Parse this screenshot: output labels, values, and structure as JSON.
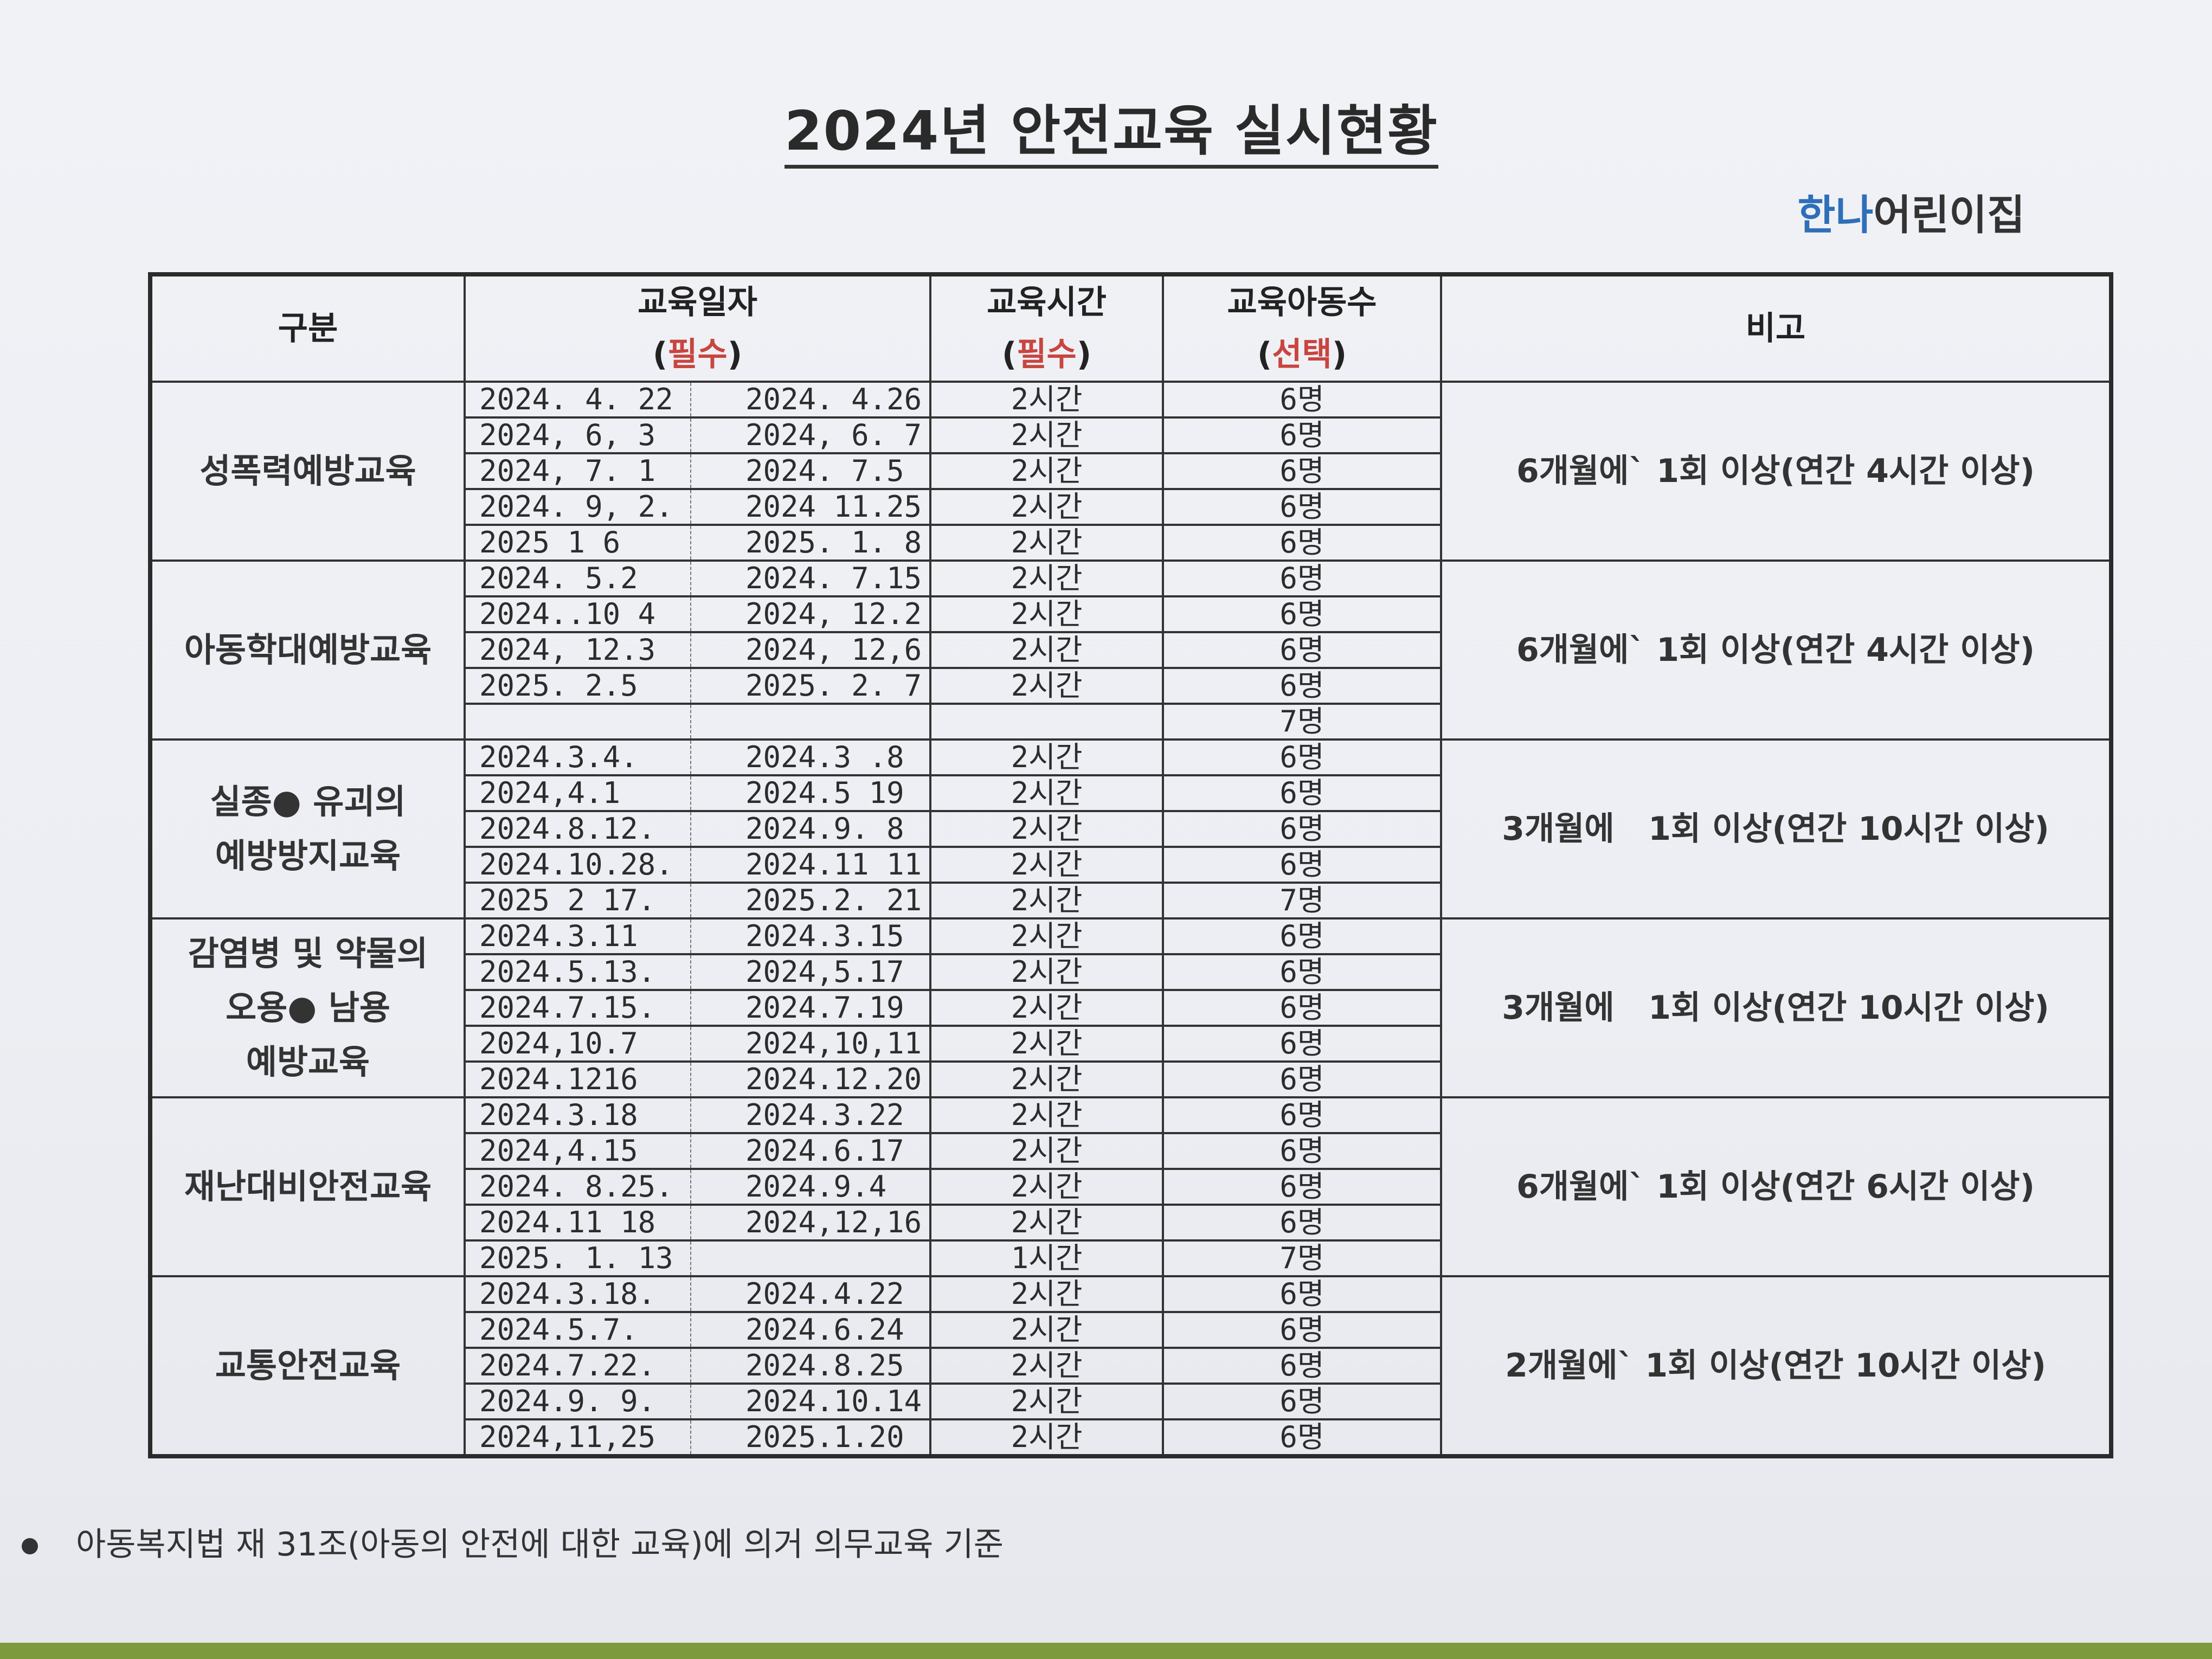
{
  "title": "2024년 안전교육 실시현황",
  "org": {
    "part1": "한나",
    "part2": "어린이집",
    "accent": "#2e6fb8"
  },
  "header": {
    "category": "구분",
    "date": "교육일자",
    "date_req": "필수",
    "time": "교육시간",
    "time_req": "필수",
    "children": "교육아동수",
    "children_req": "선택",
    "remark": "비고",
    "req_color": "#c8453f"
  },
  "groups": [
    {
      "label": [
        "성폭력예방교육"
      ],
      "remark": "6개월에` 1회 이상(연간 4시간 이상)",
      "rows": [
        [
          "2024. 4. 22",
          "2024. 4.26",
          "2시간",
          "6명"
        ],
        [
          "2024, 6, 3",
          "2024, 6. 7",
          "2시간",
          "6명"
        ],
        [
          "2024, 7. 1",
          "2024. 7.5",
          "2시간",
          "6명"
        ],
        [
          "2024. 9, 2.",
          "2024 11.25",
          "2시간",
          "6명"
        ],
        [
          "2025 1 6",
          "2025. 1. 8",
          "2시간",
          "6명"
        ]
      ]
    },
    {
      "label": [
        "아동학대예방교육"
      ],
      "remark": "6개월에` 1회 이상(연간 4시간 이상)",
      "rows": [
        [
          "2024. 5.2",
          "2024. 7.15",
          "2시간",
          "6명"
        ],
        [
          "2024..10 4",
          "2024, 12.2",
          "2시간",
          "6명"
        ],
        [
          "2024, 12.3",
          "2024, 12,6",
          "2시간",
          "6명"
        ],
        [
          "2025.  2.5",
          "2025.  2. 7",
          "2시간",
          "6명"
        ],
        [
          "",
          "",
          "",
          "7명"
        ]
      ]
    },
    {
      "label": [
        "실종● 유괴의",
        "예방방지교육"
      ],
      "remark": "3개월에   1회 이상(연간 10시간 이상)",
      "rows": [
        [
          "2024.3.4.",
          "2024.3 .8",
          "2시간",
          "6명"
        ],
        [
          "2024,4.1",
          "2024.5 19",
          "2시간",
          "6명"
        ],
        [
          "2024.8.12.",
          "2024.9. 8",
          "2시간",
          "6명"
        ],
        [
          "2024.10.28.",
          "2024.11 11",
          "2시간",
          "6명"
        ],
        [
          "2025 2 17.",
          "2025.2. 21",
          "2시간",
          "7명"
        ]
      ]
    },
    {
      "label": [
        "감염병 및 약물의",
        "오용● 남용",
        "예방교육"
      ],
      "remark": "3개월에   1회 이상(연간 10시간 이상)",
      "rows": [
        [
          "2024.3.11",
          "2024.3.15",
          "2시간",
          "6명"
        ],
        [
          "2024.5.13.",
          "2024,5.17",
          "2시간",
          "6명"
        ],
        [
          "2024.7.15.",
          "2024.7.19",
          "2시간",
          "6명"
        ],
        [
          "2024,10.7",
          "2024,10,11",
          "2시간",
          "6명"
        ],
        [
          "2024.1216",
          "2024.12.20",
          "2시간",
          "6명"
        ]
      ]
    },
    {
      "label": [
        "재난대비안전교육"
      ],
      "remark": "6개월에` 1회 이상(연간 6시간 이상)",
      "rows": [
        [
          "2024.3.18",
          "2024.3.22",
          "2시간",
          "6명"
        ],
        [
          "2024,4.15",
          "2024.6.17",
          "2시간",
          "6명"
        ],
        [
          "2024. 8.25.",
          "2024.9.4",
          "2시간",
          "6명"
        ],
        [
          "2024.11 18",
          "2024,12,16",
          "2시간",
          "6명"
        ],
        [
          "2025. 1. 13",
          "",
          "1시간",
          "7명"
        ]
      ]
    },
    {
      "label": [
        "교통안전교육"
      ],
      "remark": "2개월에` 1회 이상(연간 10시간 이상)",
      "rows": [
        [
          "2024.3.18.",
          "2024.4.22",
          "2시간",
          "6명"
        ],
        [
          "2024.5.7.",
          "2024.6.24",
          "2시간",
          "6명"
        ],
        [
          "2024.7.22.",
          "2024.8.25",
          "2시간",
          "6명"
        ],
        [
          "2024.9. 9.",
          "2024.10.14",
          "2시간",
          "6명"
        ],
        [
          "2024,11,25",
          "2025.1.20",
          "2시간",
          "6명"
        ]
      ]
    }
  ],
  "footnote": "아동복지법 재 31조(아동의 안전에 대한 교육)에 의거 의무교육 기준"
}
